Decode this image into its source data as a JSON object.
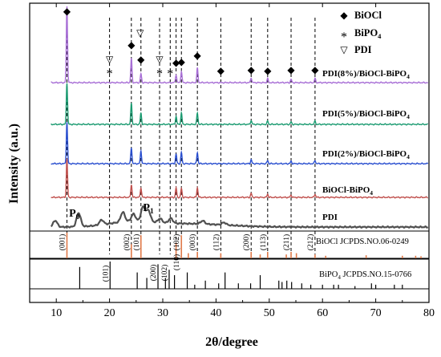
{
  "chart_data": {
    "type": "line",
    "xlabel": "2θ/degree",
    "ylabel": "Intensity (a.u.)",
    "xlim": [
      5,
      80
    ],
    "x_ticks": [
      10,
      20,
      30,
      40,
      50,
      60,
      70,
      80
    ],
    "grid": false,
    "legend_position": "top-right",
    "legend": [
      {
        "symbol": "◆",
        "label": "BiOCl"
      },
      {
        "symbol": "*",
        "label": "BiPO",
        "sub": "4"
      },
      {
        "symbol": "▽",
        "label": "PDI"
      }
    ],
    "series": [
      {
        "name": "PDI(8%)/BiOCl-BiPO",
        "name_sub": "4",
        "color": "#a86fd6",
        "peaks": [
          [
            12.0,
            95
          ],
          [
            24.1,
            30
          ],
          [
            25.9,
            11
          ],
          [
            32.5,
            10
          ],
          [
            33.5,
            14
          ],
          [
            36.5,
            18
          ],
          [
            46.6,
            6
          ],
          [
            49.7,
            5
          ],
          [
            54.1,
            4
          ],
          [
            58.6,
            5
          ]
        ]
      },
      {
        "name": "PDI(5%)/BiOCl-BiPO",
        "name_sub": "4",
        "color": "#1a9a70",
        "peaks": [
          [
            12.0,
            52
          ],
          [
            24.1,
            26
          ],
          [
            25.9,
            14
          ],
          [
            32.5,
            10
          ],
          [
            33.5,
            14
          ],
          [
            36.5,
            14
          ],
          [
            46.6,
            5
          ],
          [
            49.7,
            4
          ],
          [
            54.1,
            3
          ],
          [
            58.6,
            4
          ]
        ]
      },
      {
        "name": "PDI(2%)/BiOCl-BiPO",
        "name_sub": "4",
        "color": "#2a4fcf",
        "peaks": [
          [
            12.0,
            52
          ],
          [
            24.1,
            20
          ],
          [
            25.9,
            16
          ],
          [
            32.5,
            12
          ],
          [
            33.5,
            14
          ],
          [
            36.5,
            14
          ],
          [
            46.6,
            5
          ],
          [
            49.7,
            4
          ],
          [
            54.1,
            3
          ],
          [
            58.6,
            4
          ]
        ]
      },
      {
        "name": "BiOCl-BiPO",
        "name_sub": "4",
        "color": "#c0504d",
        "peaks": [
          [
            12.0,
            48
          ],
          [
            24.1,
            16
          ],
          [
            25.9,
            12
          ],
          [
            32.5,
            12
          ],
          [
            33.5,
            11
          ],
          [
            36.5,
            12
          ],
          [
            46.6,
            5
          ],
          [
            49.7,
            4
          ],
          [
            54.1,
            3
          ],
          [
            58.6,
            4
          ]
        ]
      },
      {
        "name": "PDI",
        "name_sub": "",
        "color": "#505050",
        "peaks": [
          [
            9.8,
            8
          ],
          [
            14.2,
            17
          ],
          [
            18.5,
            6
          ],
          [
            22.5,
            12
          ],
          [
            24.5,
            9
          ],
          [
            26.3,
            18
          ],
          [
            27.3,
            14
          ],
          [
            29.5,
            5
          ],
          [
            31.5,
            6
          ],
          [
            37.5,
            4
          ],
          [
            41.5,
            3
          ]
        ]
      }
    ],
    "annotations": {
      "peak_labels": [
        {
          "text": "P",
          "sub": "0",
          "x": 14.2
        },
        {
          "text": "P",
          "sub": "1",
          "x": 26.3
        }
      ],
      "phase_markers": [
        {
          "x": 12.0,
          "symbol": "◆"
        },
        {
          "x": 20.0,
          "symbol": "▽*"
        },
        {
          "x": 24.1,
          "symbol": "◆"
        },
        {
          "x": 25.9,
          "symbol": "▽◆"
        },
        {
          "x": 29.4,
          "symbol": "▽*"
        },
        {
          "x": 31.4,
          "symbol": "*"
        },
        {
          "x": 32.5,
          "symbol": "◆"
        },
        {
          "x": 33.5,
          "symbol": "◆"
        },
        {
          "x": 36.5,
          "symbol": "◆"
        },
        {
          "x": 40.9,
          "symbol": "◆"
        },
        {
          "x": 46.6,
          "symbol": "◆"
        },
        {
          "x": 49.7,
          "symbol": "◆"
        },
        {
          "x": 54.1,
          "symbol": "◆"
        },
        {
          "x": 58.6,
          "symbol": "◆"
        }
      ]
    },
    "reference_patterns": [
      {
        "label": "BiOCl JCPDS.NO.06-0249",
        "label_sub": "",
        "color": "#e07a4a",
        "lines": [
          [
            12.0,
            1.0
          ],
          [
            24.1,
            0.55
          ],
          [
            25.9,
            0.9
          ],
          [
            32.5,
            0.6
          ],
          [
            33.5,
            0.9
          ],
          [
            34.8,
            0.2
          ],
          [
            36.5,
            0.25
          ],
          [
            40.9,
            0.2
          ],
          [
            46.6,
            0.25
          ],
          [
            48.3,
            0.15
          ],
          [
            49.7,
            0.25
          ],
          [
            53.2,
            0.15
          ],
          [
            54.1,
            0.25
          ],
          [
            55.1,
            0.2
          ],
          [
            58.6,
            0.15
          ],
          [
            60.6,
            0.1
          ],
          [
            68.2,
            0.12
          ],
          [
            75.0,
            0.1
          ],
          [
            77.5,
            0.1
          ],
          [
            78.5,
            0.08
          ]
        ],
        "hkl": [
          {
            "x": 12.0,
            "label": "(001)"
          },
          {
            "x": 24.1,
            "label": "(002)"
          },
          {
            "x": 25.9,
            "label": "(101)"
          },
          {
            "x": 33.5,
            "label": "(102)"
          },
          {
            "x": 36.5,
            "label": "(003)"
          },
          {
            "x": 40.9,
            "label": "(112)"
          },
          {
            "x": 46.6,
            "label": "(200)"
          },
          {
            "x": 49.7,
            "label": "(113)"
          },
          {
            "x": 54.1,
            "label": "(211)"
          },
          {
            "x": 58.6,
            "label": "(212)"
          }
        ]
      },
      {
        "label": "BiPO",
        "label_sub": "4",
        "label_tail": " JCPDS.NO.15-0766",
        "color": "#000000",
        "lines": [
          [
            14.4,
            0.8
          ],
          [
            20.1,
            1.0
          ],
          [
            25.2,
            0.6
          ],
          [
            27.0,
            0.4
          ],
          [
            29.1,
            0.9
          ],
          [
            30.5,
            0.4
          ],
          [
            31.2,
            0.7
          ],
          [
            32.2,
            0.5
          ],
          [
            34.6,
            0.6
          ],
          [
            36.0,
            0.15
          ],
          [
            38.0,
            0.3
          ],
          [
            40.5,
            0.2
          ],
          [
            41.7,
            0.6
          ],
          [
            44.2,
            0.2
          ],
          [
            46.5,
            0.2
          ],
          [
            48.3,
            0.5
          ],
          [
            51.8,
            0.3
          ],
          [
            52.4,
            0.25
          ],
          [
            53.3,
            0.3
          ],
          [
            54.2,
            0.25
          ],
          [
            56.1,
            0.2
          ],
          [
            57.8,
            0.15
          ],
          [
            60.0,
            0.15
          ],
          [
            62.1,
            0.15
          ],
          [
            63.0,
            0.15
          ],
          [
            66.1,
            0.1
          ],
          [
            69.2,
            0.2
          ],
          [
            70.0,
            0.15
          ],
          [
            73.5,
            0.15
          ],
          [
            75.0,
            0.15
          ]
        ],
        "hkl": [
          {
            "x": 20.1,
            "label": "(101)"
          },
          {
            "x": 29.1,
            "label": "(200)"
          },
          {
            "x": 31.2,
            "label": "(102)"
          },
          {
            "x": 33.3,
            "label": "(110)"
          }
        ]
      }
    ]
  }
}
